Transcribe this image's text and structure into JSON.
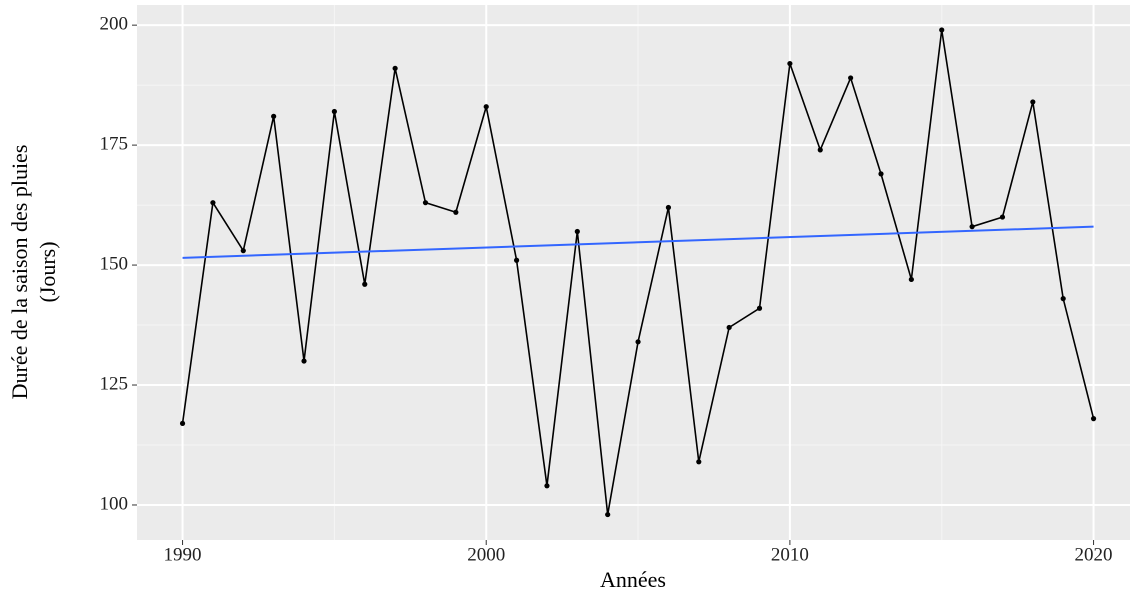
{
  "chart_data": {
    "type": "line",
    "x_label": "Années",
    "y_label": [
      "Durée de la saison des pluies",
      "(Jours)"
    ],
    "x": [
      1990,
      1991,
      1992,
      1993,
      1994,
      1995,
      1996,
      1997,
      1998,
      1999,
      2000,
      2001,
      2002,
      2003,
      2004,
      2005,
      2006,
      2007,
      2008,
      2009,
      2010,
      2011,
      2012,
      2013,
      2014,
      2015,
      2016,
      2017,
      2018,
      2019,
      2020
    ],
    "series": [
      {
        "color": "#000000",
        "values": [
          117,
          163,
          153,
          181,
          130,
          182,
          146,
          191,
          163,
          161,
          183,
          151,
          104,
          157,
          98,
          134,
          162,
          109,
          137,
          141,
          192,
          174,
          189,
          169,
          147,
          199,
          158,
          160,
          184,
          143,
          118
        ]
      }
    ],
    "trend": {
      "color": "#3366ff",
      "x": [
        1990,
        2020
      ],
      "values": [
        151.5,
        158
      ]
    },
    "xlim": [
      1988.5,
      2021.2
    ],
    "ylim": [
      92.7,
      204.2
    ],
    "xticks": [
      1990,
      2000,
      2010,
      2020
    ],
    "yticks": [
      100,
      125,
      150,
      175,
      200
    ],
    "grid": true
  }
}
